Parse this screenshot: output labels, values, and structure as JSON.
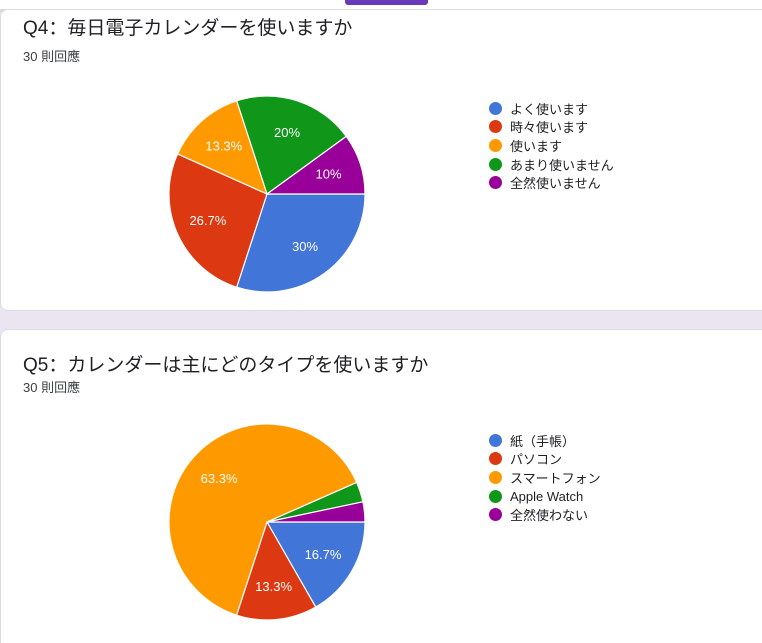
{
  "page": {
    "background_color": "#e9e6f2",
    "card_background": "#ffffff",
    "card_border_color": "#dadce0",
    "previous_chart_bar_color": "#673ab7"
  },
  "cards": [
    {
      "title": "Q4：毎日電子カレンダーを使いますか",
      "responses_label": "30 則回應",
      "responses": 30
    },
    {
      "title": "Q5：カレンダーは主にどのタイプを使いますか",
      "responses_label": "30 則回應",
      "responses": 30
    }
  ],
  "chart_data": [
    {
      "type": "pie",
      "title": "Q4：毎日電子カレンダーを使いますか",
      "subtitle": "30 則回應",
      "legend_position": "right",
      "direction": "clockwise",
      "start_angle_deg": 90,
      "labels": [
        "よく使います",
        "時々使います",
        "使います",
        "あまり使いません",
        "全然使いません"
      ],
      "values": [
        30,
        26.7,
        13.3,
        20,
        10
      ],
      "display_labels": [
        "30%",
        "26.7%",
        "13.3%",
        "20%",
        "10%"
      ],
      "colors": [
        "#4175d8",
        "#dc3912",
        "#ff9900",
        "#109618",
        "#990099"
      ],
      "slice_label_color": "#ffffff",
      "label_radius_ratio": 0.66
    },
    {
      "type": "pie",
      "title": "Q5：カレンダーは主にどのタイプを使いますか",
      "subtitle": "30 則回應",
      "legend_position": "right",
      "direction": "clockwise",
      "start_angle_deg": 90,
      "labels": [
        "紙（手帳）",
        "パソコン",
        "スマートフォン",
        "Apple Watch",
        "全然使わない"
      ],
      "values": [
        16.7,
        13.3,
        63.3,
        3.3,
        3.3
      ],
      "display_labels": [
        "16.7%",
        "13.3%",
        "63.3%",
        "",
        ""
      ],
      "colors": [
        "#4175d8",
        "#dc3912",
        "#ff9900",
        "#109618",
        "#990099"
      ],
      "slice_label_color": "#ffffff",
      "label_radius_ratio": 0.66
    }
  ]
}
